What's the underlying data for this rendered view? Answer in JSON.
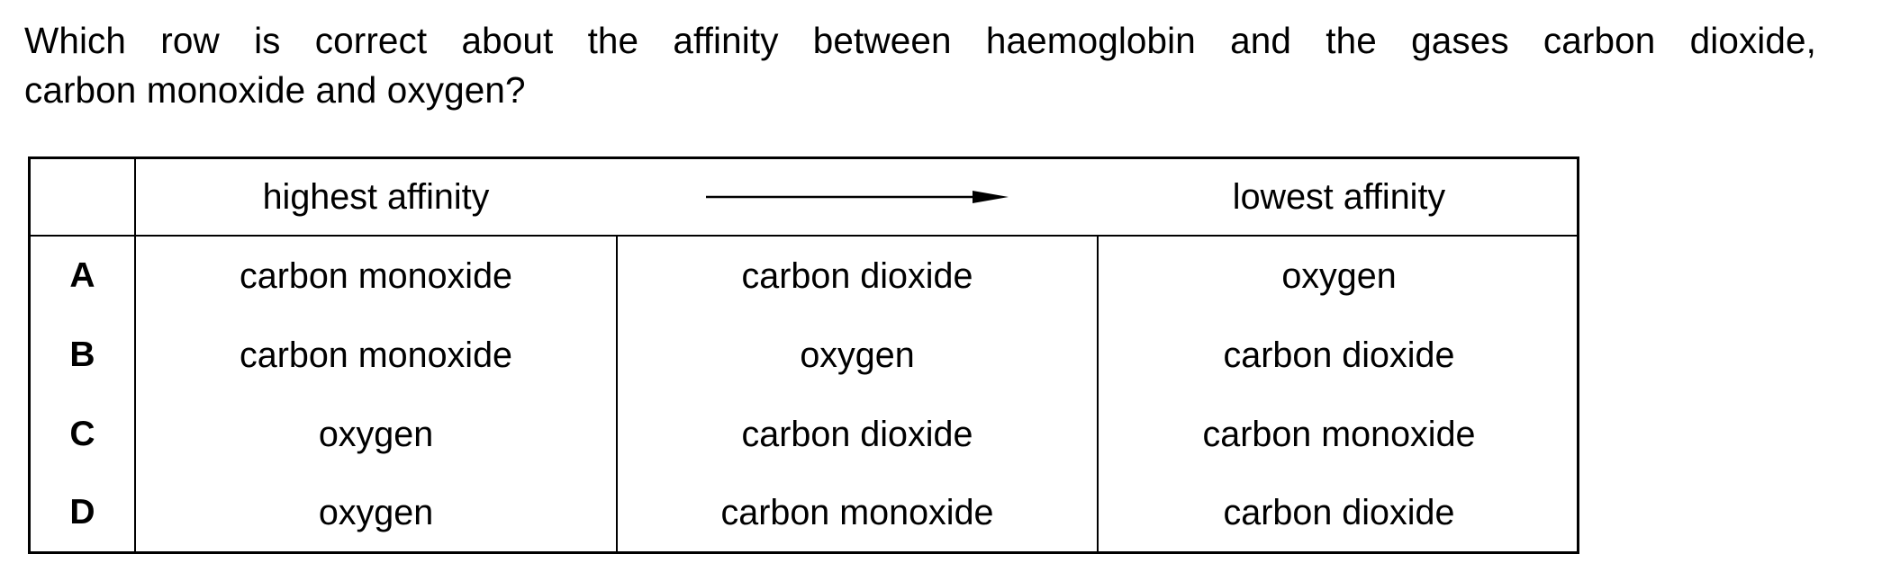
{
  "question": {
    "line1": "Which row is correct about the affinity between haemoglobin and the gases carbon dioxide,",
    "line2": "carbon monoxide and oxygen?"
  },
  "table": {
    "header": {
      "first": "highest affinity",
      "last": "lowest affinity",
      "arrow_icon": "right-arrow-icon"
    },
    "rows": [
      {
        "letter": "A",
        "cells": [
          "carbon monoxide",
          "carbon dioxide",
          "oxygen"
        ]
      },
      {
        "letter": "B",
        "cells": [
          "carbon monoxide",
          "oxygen",
          "carbon dioxide"
        ]
      },
      {
        "letter": "C",
        "cells": [
          "oxygen",
          "carbon dioxide",
          "carbon monoxide"
        ]
      },
      {
        "letter": "D",
        "cells": [
          "oxygen",
          "carbon monoxide",
          "carbon dioxide"
        ]
      }
    ]
  }
}
